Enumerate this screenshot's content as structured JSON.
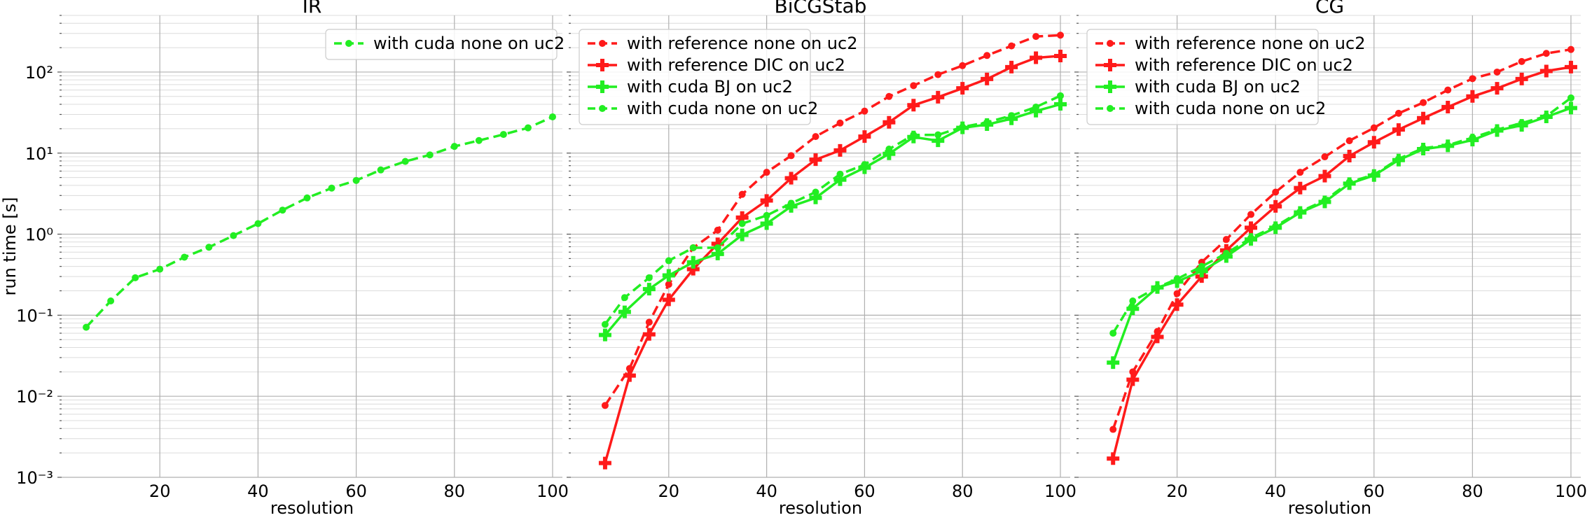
{
  "chart_data": [
    {
      "type": "line",
      "title": "IR",
      "xlabel": "resolution",
      "ylabel": "run time [s]",
      "xlim": [
        0,
        102
      ],
      "ylim": [
        0.001,
        500
      ],
      "yscale": "log",
      "xticks": [
        20,
        40,
        60,
        80,
        100
      ],
      "grid": true,
      "legend_position": "top-right",
      "series": [
        {
          "name": "with cuda none on uc2",
          "color": "#22ee22",
          "linestyle": "dashed",
          "marker": "dot",
          "x": [
            5,
            10,
            15,
            20,
            25,
            30,
            35,
            40,
            45,
            50,
            55,
            60,
            65,
            70,
            75,
            80,
            85,
            90,
            95,
            100
          ],
          "y": [
            0.071,
            0.15,
            0.29,
            0.37,
            0.52,
            0.69,
            0.96,
            1.35,
            1.98,
            2.8,
            3.7,
            4.6,
            6.2,
            7.9,
            9.5,
            12.1,
            14.3,
            17.0,
            20.5,
            28.0
          ]
        }
      ]
    },
    {
      "type": "line",
      "title": "BiCGStab",
      "xlabel": "resolution",
      "ylabel": "",
      "xlim": [
        0,
        102
      ],
      "ylim": [
        0.001,
        500
      ],
      "yscale": "log",
      "xticks": [
        20,
        40,
        60,
        80,
        100
      ],
      "grid": true,
      "legend_position": "top-left",
      "series": [
        {
          "name": "with reference none on uc2",
          "color": "#ff1a1a",
          "linestyle": "dashed",
          "marker": "dot",
          "x": [
            7,
            12,
            16,
            20,
            25,
            30,
            35,
            40,
            45,
            50,
            55,
            60,
            65,
            70,
            75,
            80,
            85,
            90,
            95,
            100
          ],
          "y": [
            0.0077,
            0.022,
            0.082,
            0.24,
            0.68,
            1.12,
            3.1,
            5.8,
            9.3,
            16.0,
            23.5,
            33.0,
            50.0,
            68.0,
            93.0,
            120.0,
            160.0,
            210.0,
            275.0,
            285.0
          ]
        },
        {
          "name": "with reference DIC on uc2",
          "color": "#ff1a1a",
          "linestyle": "solid",
          "marker": "plus",
          "x": [
            7,
            12,
            16,
            20,
            25,
            30,
            35,
            40,
            45,
            50,
            55,
            60,
            65,
            70,
            75,
            80,
            85,
            90,
            95,
            100
          ],
          "y": [
            0.0015,
            0.018,
            0.058,
            0.155,
            0.37,
            0.76,
            1.6,
            2.6,
            4.9,
            8.3,
            10.8,
            16.0,
            24.0,
            39.0,
            49.0,
            63.0,
            82.0,
            115.0,
            150.0,
            158.0
          ]
        },
        {
          "name": "with cuda BJ on uc2",
          "color": "#22ee22",
          "linestyle": "solid",
          "marker": "plus",
          "x": [
            7,
            11,
            16,
            20,
            25,
            30,
            35,
            40,
            45,
            50,
            55,
            60,
            65,
            70,
            75,
            80,
            85,
            90,
            95,
            100
          ],
          "y": [
            0.057,
            0.11,
            0.21,
            0.31,
            0.45,
            0.57,
            0.98,
            1.35,
            2.2,
            2.8,
            4.7,
            6.6,
            9.8,
            15.8,
            14.2,
            20.5,
            22.5,
            26.5,
            33.0,
            40.0
          ]
        },
        {
          "name": "with cuda none on uc2",
          "color": "#22ee22",
          "linestyle": "dashed",
          "marker": "dot",
          "x": [
            7,
            11,
            16,
            20,
            25,
            30,
            35,
            40,
            45,
            50,
            55,
            60,
            65,
            70,
            75,
            80,
            85,
            90,
            95,
            100
          ],
          "y": [
            0.077,
            0.165,
            0.29,
            0.47,
            0.68,
            0.68,
            1.35,
            1.7,
            2.4,
            3.3,
            5.5,
            7.2,
            11.2,
            16.8,
            16.8,
            21.0,
            24.0,
            29.0,
            37.0,
            51.0
          ]
        }
      ]
    },
    {
      "type": "line",
      "title": "CG",
      "xlabel": "resolution",
      "ylabel": "",
      "xlim": [
        0,
        102
      ],
      "ylim": [
        0.001,
        500
      ],
      "yscale": "log",
      "xticks": [
        20,
        40,
        60,
        80,
        100
      ],
      "grid": true,
      "legend_position": "top-left",
      "series": [
        {
          "name": "with reference none on uc2",
          "color": "#ff1a1a",
          "linestyle": "dashed",
          "marker": "dot",
          "x": [
            7,
            11,
            16,
            20,
            25,
            30,
            35,
            40,
            45,
            50,
            55,
            60,
            65,
            70,
            75,
            80,
            85,
            90,
            95,
            100
          ],
          "y": [
            0.0039,
            0.02,
            0.063,
            0.185,
            0.45,
            0.86,
            1.75,
            3.3,
            5.8,
            9.0,
            14.2,
            20.5,
            31.0,
            42.0,
            60.0,
            83.0,
            100.0,
            135.0,
            170.0,
            190.0
          ]
        },
        {
          "name": "with reference DIC on uc2",
          "color": "#ff1a1a",
          "linestyle": "solid",
          "marker": "plus",
          "x": [
            7,
            11,
            16,
            20,
            25,
            30,
            35,
            40,
            45,
            50,
            55,
            60,
            65,
            70,
            75,
            80,
            85,
            90,
            95,
            100
          ],
          "y": [
            0.0017,
            0.016,
            0.054,
            0.135,
            0.3,
            0.63,
            1.2,
            2.2,
            3.7,
            5.2,
            9.2,
            13.6,
            19.5,
            27.0,
            37.0,
            50.0,
            63.0,
            82.0,
            103.0,
            115.0
          ]
        },
        {
          "name": "with cuda BJ on uc2",
          "color": "#22ee22",
          "linestyle": "solid",
          "marker": "plus",
          "x": [
            7,
            11,
            16,
            20,
            25,
            30,
            35,
            40,
            45,
            50,
            55,
            60,
            65,
            70,
            75,
            80,
            85,
            90,
            95,
            100
          ],
          "y": [
            0.026,
            0.12,
            0.22,
            0.26,
            0.35,
            0.53,
            0.86,
            1.2,
            1.85,
            2.5,
            4.2,
            5.3,
            8.2,
            11.2,
            12.3,
            14.5,
            19.0,
            22.0,
            28.0,
            36.0
          ]
        },
        {
          "name": "with cuda none on uc2",
          "color": "#22ee22",
          "linestyle": "dashed",
          "marker": "dot",
          "x": [
            7,
            11,
            16,
            20,
            25,
            30,
            35,
            40,
            45,
            50,
            55,
            60,
            65,
            70,
            75,
            80,
            85,
            90,
            95,
            100
          ],
          "y": [
            0.06,
            0.15,
            0.22,
            0.28,
            0.4,
            0.58,
            0.9,
            1.25,
            1.9,
            2.6,
            4.4,
            5.4,
            8.5,
            11.5,
            12.5,
            15.5,
            19.5,
            23.5,
            28.5,
            48.0
          ]
        }
      ]
    }
  ]
}
